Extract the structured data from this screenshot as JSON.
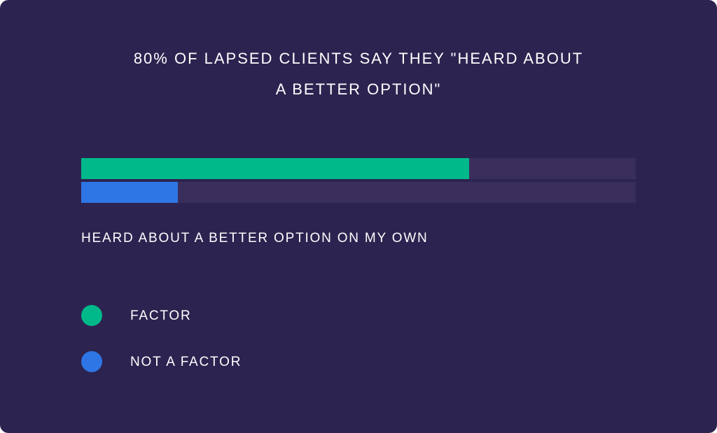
{
  "colors": {
    "background": "#2d2350",
    "track": "#3a2f5c",
    "factor": "#00b98a",
    "not_factor": "#2e76e5",
    "text": "#ffffff"
  },
  "chart_data": {
    "type": "bar",
    "title_line1": "80% OF LAPSED CLIENTS SAY THEY \"HEARD ABOUT",
    "title_line2": "A BETTER OPTION\"",
    "categories": [
      "HEARD ABOUT A BETTER OPTION ON MY OWN"
    ],
    "series": [
      {
        "name": "FACTOR",
        "values": [
          0.8
        ],
        "color": "#00b98a"
      },
      {
        "name": "NOT A FACTOR",
        "values": [
          0.2
        ],
        "color": "#2e76e5"
      }
    ],
    "ylim": [
      0,
      1
    ],
    "legend_position": "bottom-left",
    "grid": false
  }
}
